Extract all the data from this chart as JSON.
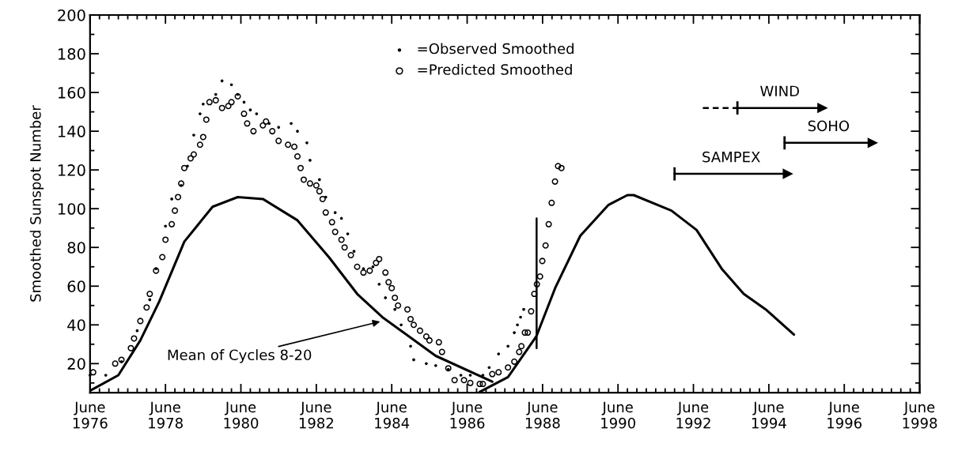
{
  "chart_data": {
    "type": "scatter",
    "ylabel": "Smoothed Sunspot Number",
    "xlim": [
      "1976-06",
      "1998-06"
    ],
    "xticks": [
      {
        "value": "1976-06",
        "label": "June\n1976"
      },
      {
        "value": "1978-06",
        "label": "June\n1978"
      },
      {
        "value": "1980-06",
        "label": "June\n1980"
      },
      {
        "value": "1982-06",
        "label": "June\n1982"
      },
      {
        "value": "1984-06",
        "label": "June\n1984"
      },
      {
        "value": "1986-06",
        "label": "June\n1986"
      },
      {
        "value": "1988-06",
        "label": "June\n1988"
      },
      {
        "value": "1990-06",
        "label": "June\n1990"
      },
      {
        "value": "1992-06",
        "label": "June\n1992"
      },
      {
        "value": "1994-06",
        "label": "June\n1994"
      },
      {
        "value": "1996-06",
        "label": "June\n1996"
      },
      {
        "value": "1998-06",
        "label": "June\n1998"
      }
    ],
    "ylim": [
      5,
      200
    ],
    "yticks": [
      20,
      40,
      60,
      80,
      100,
      120,
      140,
      160,
      180,
      200
    ],
    "grid": false,
    "legend": "top",
    "annotations": [
      {
        "text": "Mean of Cycles 8-20",
        "x": "1984-03",
        "y": 42
      }
    ],
    "series": [
      {
        "name": "=Observed Smoothed",
        "marker": "circle",
        "color": "#000000",
        "x": [
          "1976-06",
          "1976-11",
          "1977-04",
          "1977-09",
          "1978-01",
          "1978-03",
          "1978-06",
          "1978-08",
          "1978-11",
          "1979-01",
          "1979-03",
          "1979-05",
          "1979-06",
          "1979-10",
          "1979-12",
          "1980-03",
          "1980-05",
          "1980-07",
          "1980-09",
          "1980-11",
          "1981-03",
          "1981-06",
          "1981-10",
          "1981-12",
          "1982-03",
          "1982-04",
          "1982-07",
          "1982-09",
          "1982-12",
          "1983-02",
          "1983-04",
          "1983-06",
          "1983-09",
          "1983-12",
          "1984-02",
          "1984-04",
          "1984-07",
          "1984-09",
          "1984-12",
          "1985-01",
          "1985-05",
          "1985-08",
          "1985-12",
          "1986-04",
          "1986-07",
          "1986-11",
          "1987-01",
          "1987-04",
          "1987-07",
          "1987-09",
          "1987-10",
          "1987-11",
          "1987-12"
        ],
        "values": [
          14,
          14,
          21,
          37,
          53,
          69,
          91,
          105,
          112,
          122,
          138,
          149,
          154,
          159,
          166,
          164,
          159,
          155,
          151,
          149,
          144,
          142,
          144,
          140,
          134,
          125,
          115,
          106,
          98,
          95,
          87,
          78,
          69,
          70,
          61,
          54,
          48,
          40,
          29,
          22,
          20,
          19,
          17,
          14,
          14,
          14,
          18,
          25,
          29,
          36,
          40,
          44,
          48
        ]
      },
      {
        "name": "=Predicted Smoothed",
        "marker": "circle",
        "color": "#000000",
        "x": [
          "1976-07",
          "1977-02",
          "1977-04",
          "1977-07",
          "1977-08",
          "1977-10",
          "1977-12",
          "1978-01",
          "1978-03",
          "1978-05",
          "1978-06",
          "1978-08",
          "1978-09",
          "1978-10",
          "1978-11",
          "1978-12",
          "1979-02",
          "1979-03",
          "1979-05",
          "1979-06",
          "1979-07",
          "1979-08",
          "1979-10",
          "1979-12",
          "1980-02",
          "1980-03",
          "1980-05",
          "1980-07",
          "1980-08",
          "1980-10",
          "1981-01",
          "1981-02",
          "1981-04",
          "1981-06",
          "1981-09",
          "1981-11",
          "1981-12",
          "1982-01",
          "1982-02",
          "1982-04",
          "1982-06",
          "1982-07",
          "1982-08",
          "1982-09",
          "1982-11",
          "1982-12",
          "1983-02",
          "1983-03",
          "1983-05",
          "1983-07",
          "1983-09",
          "1983-11",
          "1984-01",
          "1984-02",
          "1984-04",
          "1984-05",
          "1984-06",
          "1984-07",
          "1984-08",
          "1984-11",
          "1984-12",
          "1985-01",
          "1985-03",
          "1985-05",
          "1985-06",
          "1985-09",
          "1985-10",
          "1985-12",
          "1986-02",
          "1986-05",
          "1986-07",
          "1986-10",
          "1986-11",
          "1987-02",
          "1987-04",
          "1987-07",
          "1987-09",
          "1987-10-18",
          "1987-11-09",
          "1987-12-12",
          "1988-01-10",
          "1988-02-12",
          "1988-03-12",
          "1988-04-07",
          "1988-05-07",
          "1988-05-29",
          "1988-06-30",
          "1988-07-30",
          "1988-08-28",
          "1988-09-30",
          "1988-10-29",
          "1988-12-01"
        ],
        "values": [
          15.5,
          20,
          22,
          28,
          33,
          42,
          49,
          56,
          68,
          75,
          84,
          92,
          99,
          106,
          113,
          121,
          126,
          128,
          133,
          137,
          146,
          155,
          156,
          152,
          153,
          155,
          158,
          149,
          144,
          140,
          143,
          145,
          140,
          135,
          133,
          132,
          127,
          121,
          115,
          113,
          112,
          109,
          105,
          98,
          93,
          88,
          84,
          80,
          76,
          70,
          67,
          68,
          72,
          74,
          67,
          62,
          59,
          54,
          50,
          48,
          43,
          40,
          37,
          34,
          32,
          31,
          26,
          17.6,
          11.5,
          11.5,
          10,
          9.5,
          9.5,
          14.6,
          15.5,
          18,
          21,
          26,
          29,
          36,
          36,
          47,
          56,
          61,
          65,
          73,
          81,
          92,
          103,
          114,
          122,
          121
        ]
      },
      {
        "type": "line",
        "color": "#000000",
        "marker": "none",
        "line_style": "solid",
        "x": [
          "1976-06",
          "1977-03",
          "1977-10",
          "1978-04",
          "1978-12",
          "1979-09",
          "1980-05",
          "1981-01",
          "1981-12",
          "1982-10",
          "1983-07",
          "1984-03",
          "1985-08",
          "1987-02"
        ],
        "values": [
          6,
          14,
          32,
          52,
          83,
          101,
          106,
          105,
          94,
          75,
          56,
          44,
          24,
          10.7
        ]
      },
      {
        "type": "line",
        "color": "#000000",
        "marker": "none",
        "line_style": "solid",
        "x": [
          "1986-10",
          "1987-07",
          "1988-04",
          "1988-10",
          "1989-06",
          "1990-03",
          "1990-09",
          "1990-11",
          "1991-11",
          "1992-07",
          "1993-03",
          "1993-10",
          "1994-05",
          "1995-02"
        ],
        "values": [
          5.4,
          13,
          34,
          59,
          86,
          102,
          107,
          107,
          99,
          89,
          69,
          56,
          48,
          35
        ]
      },
      {
        "type": "line",
        "color": "#000000",
        "marker": "none",
        "line_style": "solid",
        "x": [
          "1988-04-04",
          "1988-04-04"
        ],
        "values": [
          28,
          95
        ]
      },
      {
        "name": "SAMPEX",
        "type": "line",
        "color": "#000000",
        "marker": "triangle",
        "line_style": "solid",
        "x": [
          "1991-12",
          "1994-12"
        ],
        "values": [
          118,
          118
        ]
      },
      {
        "type": "line",
        "color": "#000000",
        "marker": "none",
        "line_style": "dashed",
        "x": [
          "1992-09",
          "1993-08"
        ],
        "values": [
          152,
          152
        ]
      },
      {
        "name": "WIND",
        "type": "line",
        "color": "#000000",
        "marker": "triangle",
        "line_style": "solid",
        "x": [
          "1993-08",
          "1995-11"
        ],
        "values": [
          152,
          152
        ]
      },
      {
        "name": "SOHO",
        "type": "line",
        "color": "#000000",
        "marker": "triangle",
        "line_style": "solid",
        "x": [
          "1994-11",
          "1997-03"
        ],
        "values": [
          134,
          134
        ]
      }
    ]
  }
}
